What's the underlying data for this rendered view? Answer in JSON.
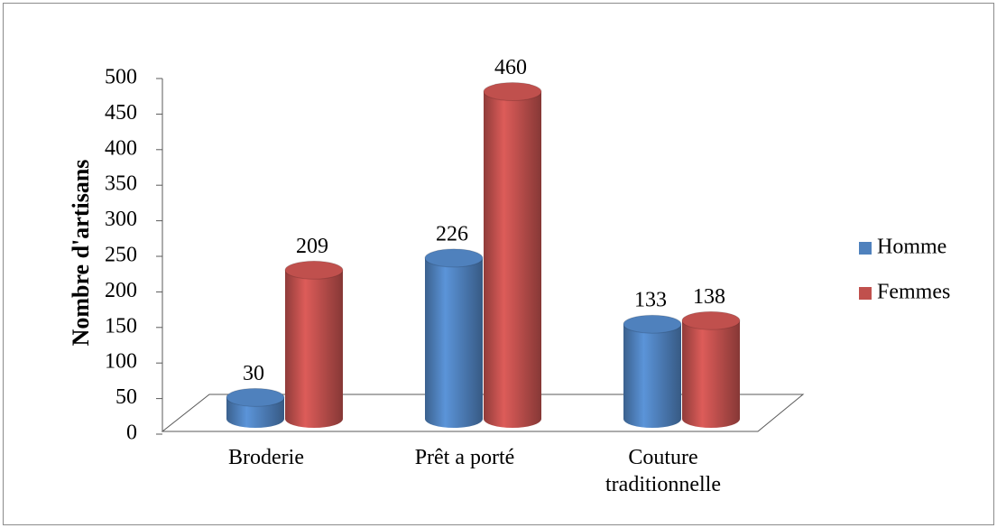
{
  "chart_data": {
    "type": "bar3d",
    "y_axis_label": "Nombre d'artisans",
    "categories": [
      "Broderie",
      "Prêt a porté",
      "Couture traditionnelle"
    ],
    "series": [
      {
        "name": "Homme",
        "color": "#4f81bd",
        "values": [
          30,
          226,
          133
        ]
      },
      {
        "name": "Femmes",
        "color": "#c0504d",
        "values": [
          209,
          460,
          138
        ]
      }
    ],
    "ylim": [
      0,
      500
    ],
    "yticks": [
      0,
      50,
      100,
      150,
      200,
      250,
      300,
      350,
      400,
      450,
      500
    ],
    "legend": "right"
  }
}
